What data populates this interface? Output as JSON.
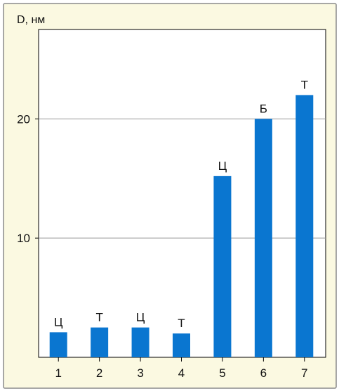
{
  "chart_data": {
    "type": "bar",
    "ylabel": "D, нм",
    "categories": [
      "1",
      "2",
      "3",
      "4",
      "5",
      "6",
      "7"
    ],
    "values": [
      2.1,
      2.5,
      2.5,
      2.0,
      15.2,
      20.0,
      22.0
    ],
    "bar_labels": [
      "Ц",
      "Т",
      "Ц",
      "Т",
      "Ц",
      "Б",
      "Т"
    ],
    "ylim": [
      0,
      27.5
    ],
    "yticks": [
      10,
      20
    ],
    "ytick_labels": [
      "10",
      "20"
    ],
    "grid": true,
    "colors": {
      "bar": "#0a76d0",
      "panel_bg": "#fbf9e1",
      "plot_bg": "#ffffff",
      "frame": "#8a8a8a",
      "axis": "#000000",
      "grid": "#9a9a9a",
      "text": "#111111"
    }
  }
}
